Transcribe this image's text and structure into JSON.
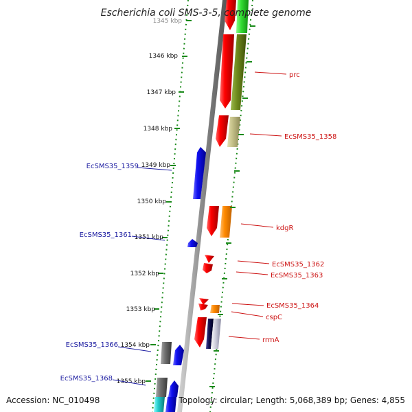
{
  "title": "Escherichia coli SMS-3-5, complete genome",
  "accession": "Accession: NC_010498",
  "topology": "Topology: circular; Length: 5,068,389 bp; Genes: 4,855",
  "colors": {
    "axis": "#888888",
    "dotted_track": "#1a8a1a",
    "forward_gene": "#e00000",
    "reverse_gene": "#1010e0",
    "left_label": "#1a1aa0",
    "right_label": "#cc1111",
    "olive": "#6e8a1c",
    "khaki": "#c4c088",
    "orange": "#ff8a00",
    "bright_green": "#33dd33",
    "gray_gene": "#707070",
    "navy": "#101050",
    "cyan": "#22cccc",
    "silver": "#c8c8d8"
  },
  "ticks": [
    {
      "label": "1345 kbp"
    },
    {
      "label": "1346 kbp"
    },
    {
      "label": "1347 kbp"
    },
    {
      "label": "1348 kbp"
    },
    {
      "label": "1349 kbp"
    },
    {
      "label": "1350 kbp"
    },
    {
      "label": "1351 kbp"
    },
    {
      "label": "1352 kbp"
    },
    {
      "label": "1353 kbp"
    },
    {
      "label": "1354 kbp"
    },
    {
      "label": "1355 kbp"
    }
  ],
  "left_labels": [
    {
      "text": "EcSMS35_1359"
    },
    {
      "text": "EcSMS35_1361"
    },
    {
      "text": "EcSMS35_1366"
    },
    {
      "text": "EcSMS35_1368"
    }
  ],
  "right_labels": [
    {
      "text": "prc"
    },
    {
      "text": "EcSMS35_1358"
    },
    {
      "text": "kdgR"
    },
    {
      "text": "EcSMS35_1362"
    },
    {
      "text": "EcSMS35_1363"
    },
    {
      "text": "EcSMS35_1364"
    },
    {
      "text": "cspC"
    },
    {
      "text": "rrmA"
    }
  ]
}
